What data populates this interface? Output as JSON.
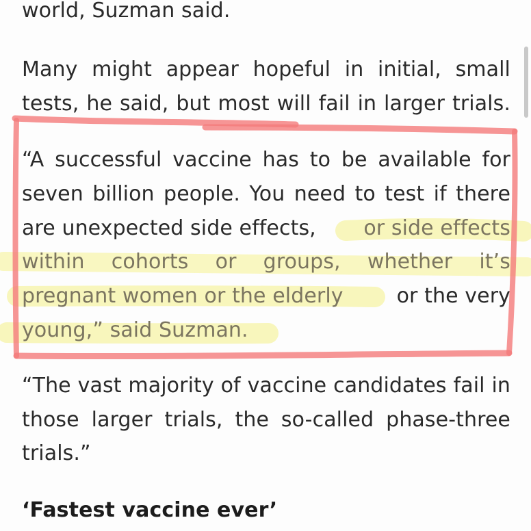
{
  "article": {
    "lines": [
      "world, Suzman said.",
      "Many might appear hopeful in initial, small",
      "tests, he said, but most will fail in larger trials.",
      "“A successful vaccine has to be available for",
      "seven billion people. You need to test if there",
      "are unexpected side effects,",
      "or side effects",
      "within cohorts or groups, whether it’s",
      "pregnant women or the elderly",
      "or the very",
      "young,” said Suzman.",
      "“The vast majority of vaccine candidates fail in",
      "those larger trials, the so-called phase-three",
      "trials.”"
    ],
    "heading": "‘Fastest vaccine ever’"
  },
  "annotations": {
    "box_color": "#f47a7a",
    "highlight_color": "#f6f3a6"
  }
}
